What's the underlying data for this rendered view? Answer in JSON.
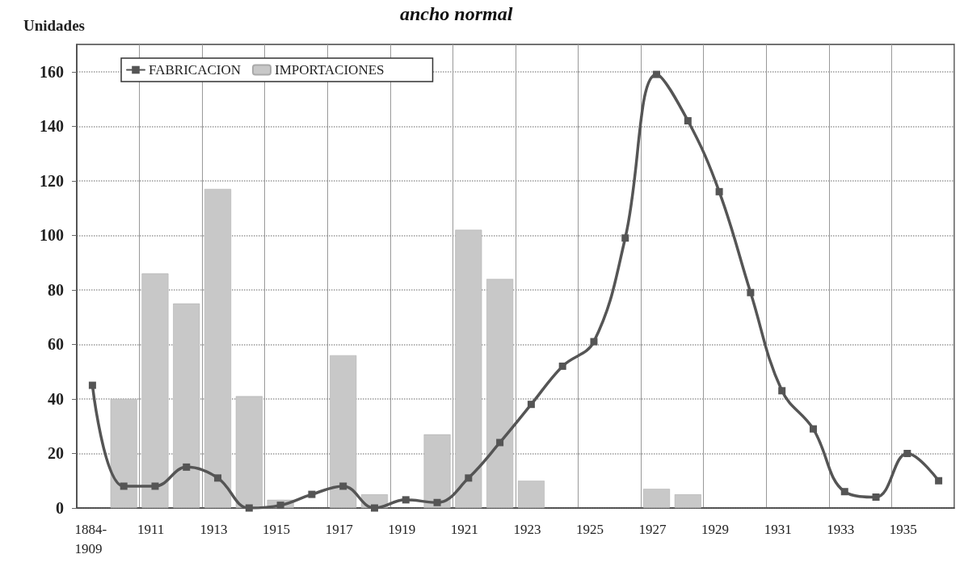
{
  "chart_data": {
    "type": "bar",
    "title": "ancho normal",
    "ylabel": "Unidades",
    "categories": [
      "1884-1909",
      null,
      "1911",
      null,
      "1913",
      null,
      "1915",
      null,
      "1917",
      null,
      "1919",
      null,
      "1921",
      null,
      "1923",
      null,
      "1925",
      null,
      "1927",
      null,
      "1929",
      null,
      "1931",
      null,
      "1933",
      null,
      "1935",
      null
    ],
    "series": [
      {
        "name": "FABRICACION",
        "type": "line",
        "color": "#555555",
        "values": [
          45,
          8,
          8,
          15,
          11,
          0,
          1,
          5,
          8,
          0,
          3,
          2,
          11,
          24,
          38,
          52,
          61,
          99,
          159,
          142,
          116,
          79,
          43,
          29,
          6,
          4,
          20,
          10
        ]
      },
      {
        "name": "IMPORTACIONES",
        "color": "#c8c8c8",
        "values": [
          null,
          40,
          86,
          75,
          117,
          41,
          3,
          null,
          56,
          5,
          null,
          27,
          102,
          84,
          10,
          null,
          null,
          null,
          7,
          5,
          null,
          null,
          null,
          null,
          null,
          null,
          null,
          null
        ]
      }
    ],
    "ylim": [
      0,
      170
    ],
    "yticks": [
      0,
      20,
      40,
      60,
      80,
      100,
      120,
      140,
      160
    ],
    "grid": true,
    "legend": "top left",
    "marker": "square",
    "line_style": "solid"
  }
}
